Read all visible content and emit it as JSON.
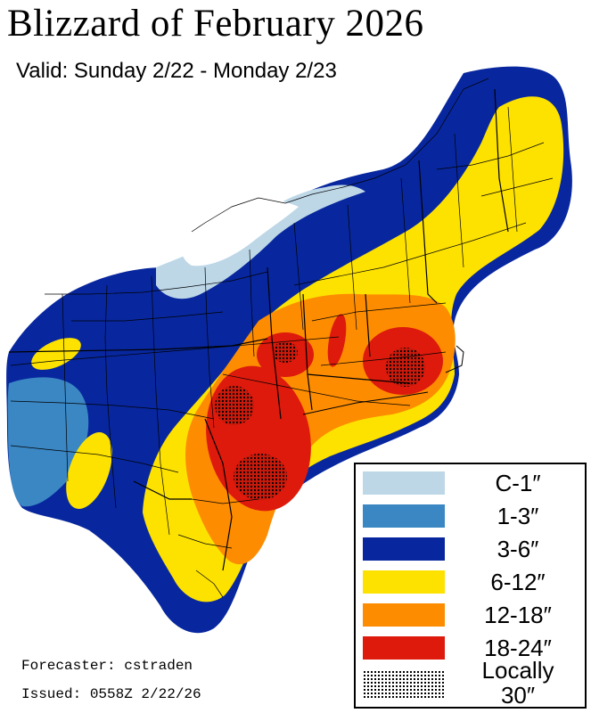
{
  "title": "Blizzard of February 2026",
  "subtitle": "Valid: Sunday 2/22 - Monday 2/23",
  "legend": {
    "items": [
      {
        "label": "C-1″",
        "color": "#bdd7e7"
      },
      {
        "label": "1-3″",
        "color": "#3a87c4"
      },
      {
        "label": "3-6″",
        "color": "#08279e"
      },
      {
        "label": "6-12″",
        "color": "#fde200"
      },
      {
        "label": "12-18″",
        "color": "#fd8c00"
      },
      {
        "label": "18-24″",
        "color": "#dd1a0c"
      }
    ],
    "locally_label_line1": "Locally",
    "locally_label_line2": "30″"
  },
  "credits": {
    "forecaster": "Forecaster: cstraden",
    "issued": "Issued: 0558Z 2/22/26"
  }
}
